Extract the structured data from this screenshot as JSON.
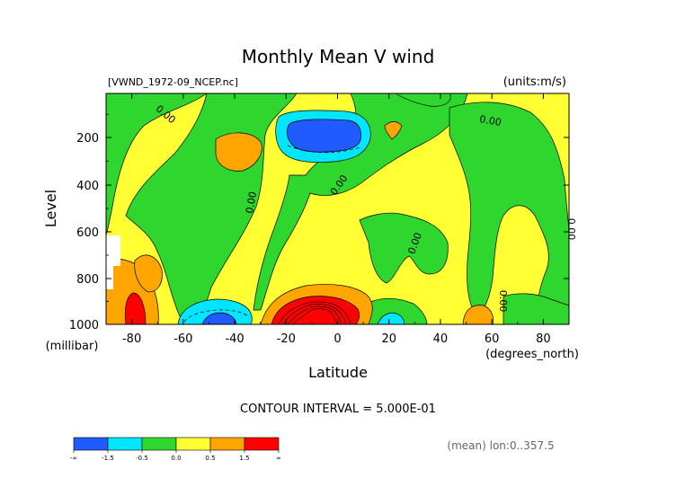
{
  "chart_data": {
    "type": "heatmap",
    "title": "Monthly Mean V wind",
    "file_label": "[VWND_1972-09_NCEP.nc]",
    "units_label": "(units:m/s)",
    "xlabel": "Latitude",
    "x_units": "(degrees_north)",
    "ylabel": "Level",
    "y_units": "(millibar)",
    "x_ticks": [
      "-80",
      "-60",
      "-40",
      "-20",
      "0",
      "20",
      "40",
      "60",
      "80"
    ],
    "y_ticks": [
      "200",
      "400",
      "600",
      "800",
      "1000"
    ],
    "xlim": [
      -90,
      90
    ],
    "ylim": [
      1000,
      10
    ],
    "contour_interval_text": "CONTOUR INTERVAL = 5.000E-01",
    "mean_text": "(mean) lon:0..357.5",
    "contour_labels": [
      "0.00",
      "0.00",
      "0.00",
      "0.00",
      "0.00",
      "0.00",
      "0.00",
      "0.00"
    ],
    "legend": {
      "bins": [
        {
          "color": "#1f5bff"
        },
        {
          "color": "#00e6ff"
        },
        {
          "color": "#2ed62e"
        },
        {
          "color": "#ffff33"
        },
        {
          "color": "#ffa500"
        },
        {
          "color": "#ff0000"
        }
      ],
      "labels": [
        "-∞",
        "-1.5",
        "-0.5",
        "0.0",
        "0.5",
        "1.5",
        "∞"
      ]
    },
    "features": [
      {
        "name": "upper-negative-core",
        "lat": -6,
        "level": 160,
        "value": -1.5
      },
      {
        "name": "upper-right-positive",
        "lat": 20,
        "level": 140,
        "value": 0.6
      },
      {
        "name": "upper-left-positive",
        "lat": -45,
        "level": 220,
        "value": 0.6
      },
      {
        "name": "surface-positive-core",
        "lat": -5,
        "level": 980,
        "value": 2.0
      },
      {
        "name": "surface-left-negative",
        "lat": -48,
        "level": 970,
        "value": -1.2
      },
      {
        "name": "surface-far-left-positive",
        "lat": -85,
        "level": 940,
        "value": 2.0
      }
    ]
  },
  "colors": {
    "neg_strong": "#1f5bff",
    "neg_weak": "#00e6ff",
    "near_zero_neg": "#2ed62e",
    "near_zero_pos": "#ffff33",
    "pos_weak": "#ffa500",
    "pos_strong": "#ff0000"
  }
}
